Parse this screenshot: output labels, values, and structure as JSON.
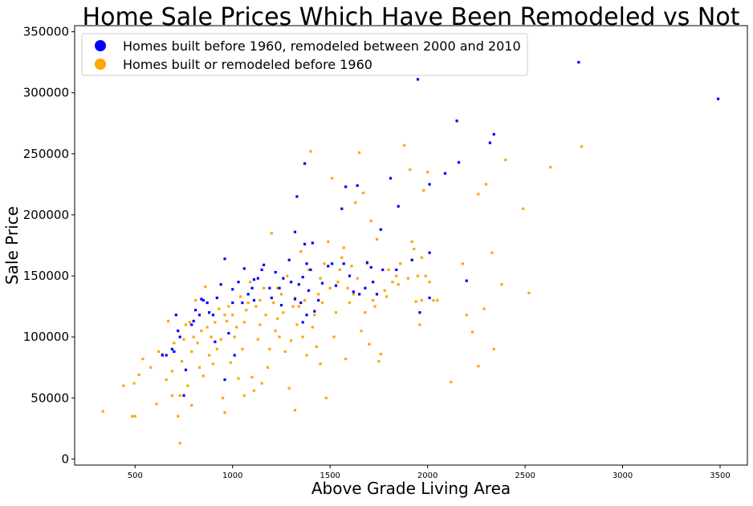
{
  "chart_data": {
    "type": "scatter",
    "title": "Home Sale Prices Which Have Been Remodeled vs Not",
    "xlabel": "Above Grade Living Area",
    "ylabel": "Sale Price",
    "xlim": [
      190,
      3640
    ],
    "ylim": [
      -5000,
      355000
    ],
    "xticks": [
      500,
      1000,
      1500,
      2000,
      2500,
      3000,
      3500
    ],
    "yticks": [
      0,
      50000,
      100000,
      150000,
      200000,
      250000,
      300000,
      350000
    ],
    "grid": false,
    "legend_position": "top-left",
    "series": [
      {
        "name": "Homes built before 1960, remodeled between 2000 and 2010",
        "color": "#0000ff",
        "points": [
          [
            3490,
            295000
          ],
          [
            2775,
            325000
          ],
          [
            1950,
            311000
          ],
          [
            2340,
            266000
          ],
          [
            2150,
            277000
          ],
          [
            2320,
            259000
          ],
          [
            2160,
            243000
          ],
          [
            2090,
            234000
          ],
          [
            1370,
            242000
          ],
          [
            1810,
            230000
          ],
          [
            2010,
            225000
          ],
          [
            1640,
            224000
          ],
          [
            1580,
            223000
          ],
          [
            1330,
            215000
          ],
          [
            1850,
            207000
          ],
          [
            1560,
            205000
          ],
          [
            1760,
            188000
          ],
          [
            1320,
            186000
          ],
          [
            1410,
            177000
          ],
          [
            1370,
            176000
          ],
          [
            2010,
            169000
          ],
          [
            1690,
            161000
          ],
          [
            1920,
            163000
          ],
          [
            1840,
            155000
          ],
          [
            2200,
            146000
          ],
          [
            1960,
            120000
          ],
          [
            2010,
            132000
          ],
          [
            640,
            85000
          ],
          [
            660,
            85000
          ],
          [
            700,
            88000
          ],
          [
            690,
            90000
          ],
          [
            730,
            100000
          ],
          [
            720,
            105000
          ],
          [
            710,
            118000
          ],
          [
            760,
            73000
          ],
          [
            750,
            52000
          ],
          [
            790,
            110000
          ],
          [
            800,
            113000
          ],
          [
            810,
            122000
          ],
          [
            830,
            118000
          ],
          [
            850,
            130000
          ],
          [
            870,
            128000
          ],
          [
            880,
            120000
          ],
          [
            900,
            118000
          ],
          [
            910,
            96000
          ],
          [
            920,
            132000
          ],
          [
            940,
            143000
          ],
          [
            960,
            164000
          ],
          [
            980,
            103000
          ],
          [
            1000,
            128000
          ],
          [
            1000,
            139000
          ],
          [
            1010,
            85000
          ],
          [
            1030,
            145000
          ],
          [
            1050,
            128000
          ],
          [
            1060,
            156000
          ],
          [
            1080,
            135000
          ],
          [
            1100,
            140000
          ],
          [
            1110,
            130000
          ],
          [
            1130,
            148000
          ],
          [
            1150,
            155000
          ],
          [
            1160,
            159000
          ],
          [
            1190,
            140000
          ],
          [
            1200,
            132000
          ],
          [
            1220,
            153000
          ],
          [
            1240,
            140000
          ],
          [
            1260,
            148000
          ],
          [
            1290,
            163000
          ],
          [
            1300,
            145000
          ],
          [
            1320,
            131000
          ],
          [
            1340,
            143000
          ],
          [
            1350,
            128000
          ],
          [
            1360,
            112000
          ],
          [
            1380,
            160000
          ],
          [
            1390,
            138000
          ],
          [
            1400,
            155000
          ],
          [
            1420,
            121000
          ],
          [
            1440,
            130000
          ],
          [
            1460,
            144000
          ],
          [
            1490,
            158000
          ],
          [
            1510,
            160000
          ],
          [
            1530,
            142000
          ],
          [
            1570,
            160000
          ],
          [
            1600,
            150000
          ],
          [
            1620,
            137000
          ],
          [
            1650,
            135000
          ],
          [
            1680,
            140000
          ],
          [
            1710,
            157000
          ],
          [
            1720,
            145000
          ],
          [
            1740,
            135000
          ],
          [
            1770,
            155000
          ],
          [
            1360,
            149000
          ],
          [
            1380,
            118000
          ],
          [
            960,
            65000
          ],
          [
            1250,
            126000
          ],
          [
            840,
            131000
          ],
          [
            1110,
            147000
          ]
        ]
      },
      {
        "name": "Homes built or remodeled before 1960",
        "color": "#ffa500",
        "points": [
          [
            335,
            39000
          ],
          [
            440,
            60000
          ],
          [
            485,
            35000
          ],
          [
            500,
            35000
          ],
          [
            495,
            62000
          ],
          [
            520,
            69000
          ],
          [
            540,
            82000
          ],
          [
            580,
            75000
          ],
          [
            610,
            45000
          ],
          [
            620,
            88000
          ],
          [
            640,
            86000
          ],
          [
            660,
            65000
          ],
          [
            670,
            113000
          ],
          [
            690,
            52000
          ],
          [
            690,
            72000
          ],
          [
            700,
            95000
          ],
          [
            720,
            35000
          ],
          [
            730,
            13000
          ],
          [
            730,
            52000
          ],
          [
            740,
            80000
          ],
          [
            750,
            98000
          ],
          [
            760,
            110000
          ],
          [
            770,
            60000
          ],
          [
            780,
            112000
          ],
          [
            790,
            88000
          ],
          [
            790,
            44000
          ],
          [
            800,
            100000
          ],
          [
            810,
            130000
          ],
          [
            820,
            95000
          ],
          [
            830,
            75000
          ],
          [
            840,
            105000
          ],
          [
            850,
            68000
          ],
          [
            860,
            141000
          ],
          [
            870,
            108000
          ],
          [
            880,
            85000
          ],
          [
            890,
            100000
          ],
          [
            900,
            78000
          ],
          [
            910,
            112000
          ],
          [
            920,
            90000
          ],
          [
            930,
            123000
          ],
          [
            940,
            98000
          ],
          [
            950,
            50000
          ],
          [
            960,
            38000
          ],
          [
            970,
            113000
          ],
          [
            980,
            125000
          ],
          [
            990,
            79000
          ],
          [
            1000,
            118000
          ],
          [
            1010,
            100000
          ],
          [
            1020,
            108000
          ],
          [
            1030,
            66000
          ],
          [
            1040,
            133000
          ],
          [
            1050,
            90000
          ],
          [
            1060,
            52000
          ],
          [
            1070,
            122000
          ],
          [
            1080,
            128000
          ],
          [
            1090,
            145000
          ],
          [
            1100,
            67000
          ],
          [
            1110,
            56000
          ],
          [
            1120,
            125000
          ],
          [
            1130,
            98000
          ],
          [
            1140,
            110000
          ],
          [
            1150,
            62000
          ],
          [
            1160,
            140000
          ],
          [
            1170,
            118000
          ],
          [
            1180,
            75000
          ],
          [
            1190,
            90000
          ],
          [
            1200,
            185000
          ],
          [
            1210,
            128000
          ],
          [
            1220,
            105000
          ],
          [
            1230,
            115000
          ],
          [
            1240,
            100000
          ],
          [
            1250,
            135000
          ],
          [
            1260,
            120000
          ],
          [
            1270,
            88000
          ],
          [
            1280,
            150000
          ],
          [
            1290,
            58000
          ],
          [
            1300,
            97000
          ],
          [
            1310,
            125000
          ],
          [
            1320,
            40000
          ],
          [
            1330,
            110000
          ],
          [
            1340,
            125000
          ],
          [
            1350,
            170000
          ],
          [
            1360,
            100000
          ],
          [
            1370,
            130000
          ],
          [
            1380,
            85000
          ],
          [
            1390,
            155000
          ],
          [
            1400,
            252000
          ],
          [
            1410,
            108000
          ],
          [
            1420,
            118000
          ],
          [
            1430,
            92000
          ],
          [
            1440,
            135000
          ],
          [
            1450,
            78000
          ],
          [
            1460,
            128000
          ],
          [
            1470,
            160000
          ],
          [
            1480,
            50000
          ],
          [
            1490,
            178000
          ],
          [
            1500,
            140000
          ],
          [
            1510,
            230000
          ],
          [
            1520,
            100000
          ],
          [
            1530,
            120000
          ],
          [
            1540,
            145000
          ],
          [
            1550,
            155000
          ],
          [
            1560,
            165000
          ],
          [
            1570,
            173000
          ],
          [
            1580,
            82000
          ],
          [
            1590,
            140000
          ],
          [
            1600,
            128000
          ],
          [
            1610,
            158000
          ],
          [
            1620,
            135000
          ],
          [
            1630,
            210000
          ],
          [
            1640,
            148000
          ],
          [
            1650,
            251000
          ],
          [
            1660,
            105000
          ],
          [
            1670,
            218000
          ],
          [
            1680,
            120000
          ],
          [
            1690,
            160000
          ],
          [
            1700,
            94000
          ],
          [
            1710,
            195000
          ],
          [
            1720,
            130000
          ],
          [
            1730,
            125000
          ],
          [
            1740,
            180000
          ],
          [
            1750,
            80000
          ],
          [
            1760,
            86000
          ],
          [
            1780,
            138000
          ],
          [
            1790,
            133000
          ],
          [
            1800,
            155000
          ],
          [
            1820,
            145000
          ],
          [
            1840,
            150000
          ],
          [
            1850,
            143000
          ],
          [
            1860,
            160000
          ],
          [
            1880,
            257000
          ],
          [
            1900,
            148000
          ],
          [
            1910,
            237000
          ],
          [
            1920,
            178000
          ],
          [
            1930,
            172000
          ],
          [
            1940,
            129000
          ],
          [
            1950,
            150000
          ],
          [
            1960,
            110000
          ],
          [
            1970,
            130000
          ],
          [
            1980,
            220000
          ],
          [
            1990,
            150000
          ],
          [
            2000,
            235000
          ],
          [
            2010,
            145000
          ],
          [
            2030,
            130000
          ],
          [
            2050,
            130000
          ],
          [
            2120,
            63000
          ],
          [
            2180,
            160000
          ],
          [
            2200,
            118000
          ],
          [
            2230,
            104000
          ],
          [
            2260,
            217000
          ],
          [
            2290,
            123000
          ],
          [
            2300,
            225000
          ],
          [
            2330,
            169000
          ],
          [
            2340,
            90000
          ],
          [
            2380,
            143000
          ],
          [
            2400,
            245000
          ],
          [
            2490,
            205000
          ],
          [
            2520,
            136000
          ],
          [
            2630,
            239000
          ],
          [
            2790,
            256000
          ],
          [
            2260,
            76000
          ],
          [
            1970,
            165000
          ],
          [
            1230,
            140000
          ],
          [
            1450,
            148000
          ],
          [
            1320,
            132000
          ],
          [
            1140,
            130000
          ],
          [
            960,
            118000
          ],
          [
            1060,
            112000
          ]
        ]
      }
    ]
  }
}
